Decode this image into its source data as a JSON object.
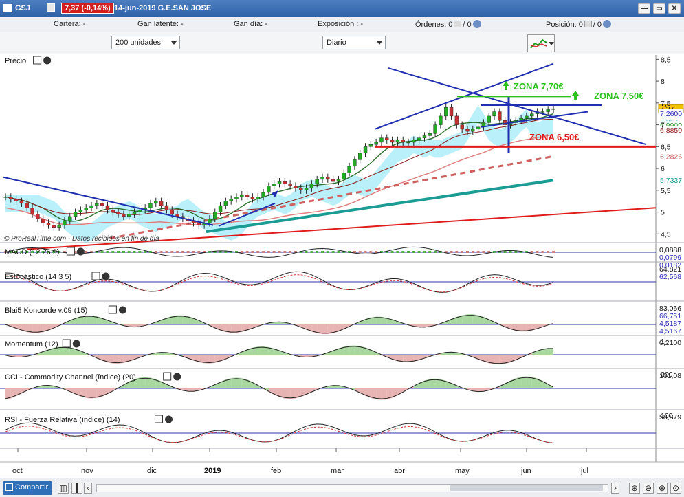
{
  "titlebar": {
    "symbol": "GSJ",
    "price": "7,37 (-0,14%)",
    "date_name": "14-jun-2019 G.E.SAN JOSE",
    "minimize": "—",
    "restore": "▭",
    "close": "✕"
  },
  "infobar": {
    "cartera": "Cartera: -",
    "ganancia_latente": "Gan latente: -",
    "ganancia_dia": "Gan día: -",
    "exposicion": "Exposición : -",
    "ordenes": "Órdenes: 0",
    "ordenes_suffix": "/ 0",
    "posicion": "Posición: 0",
    "posicion_suffix": "/ 0"
  },
  "toolbar": {
    "units": "200 unidades",
    "period": "Diario"
  },
  "bottombar": {
    "share_label": "Compartir"
  },
  "colors": {
    "up": "#22aa22",
    "down": "#c43030",
    "trend": "#1f2fb0",
    "support": "#e01b1b",
    "ichimoku": "#7fe4f5",
    "ema200": "#1a9b94"
  },
  "chart_data": [
    {
      "panel": "Precio",
      "type": "candlestick",
      "x_labels": [
        "oct",
        "nov",
        "dic",
        "2019",
        "feb",
        "mar",
        "abr",
        "may",
        "jun",
        "jul"
      ],
      "y_ticks": [
        "8,5",
        "8",
        "7,5",
        "7",
        "6,5",
        "6",
        "5,5",
        "5",
        "4,5"
      ],
      "ylim": [
        4.3,
        8.6
      ],
      "price_labels": [
        {
          "label": "7,37",
          "value": 7.37,
          "color": "#f2c200"
        },
        {
          "label": "7,2600",
          "value": 7.26,
          "color": "#2a2ab8"
        },
        {
          "label": "7,0675",
          "value": 7.07,
          "color": "#49c7e8"
        },
        {
          "label": "6,9900",
          "value": 6.99,
          "color": "#2b8f2b"
        },
        {
          "label": "6,8850",
          "value": 6.885,
          "color": "#8b1a1a"
        },
        {
          "label": "6,2826",
          "value": 6.28,
          "color": "#d06060"
        },
        {
          "label": "5,7337",
          "value": 5.73,
          "color": "#1a9b94"
        }
      ],
      "annotations": [
        "ZONA 7,70€",
        "ZONA 7,50€",
        "ZONA 6,50€"
      ],
      "watermark": "© ProRealTime.com - Datos recibidos en fin de día",
      "close": [
        5.35,
        5.3,
        5.25,
        5.2,
        5.1,
        4.95,
        4.85,
        4.75,
        4.7,
        4.65,
        4.7,
        4.8,
        4.9,
        5.0,
        5.05,
        5.1,
        5.15,
        5.2,
        5.15,
        5.05,
        5.0,
        4.95,
        4.9,
        4.95,
        5.0,
        5.05,
        5.1,
        5.2,
        5.25,
        5.15,
        5.05,
        4.95,
        4.9,
        4.85,
        4.8,
        4.75,
        4.7,
        4.75,
        4.85,
        5.0,
        5.15,
        5.25,
        5.3,
        5.35,
        5.4,
        5.35,
        5.3,
        5.35,
        5.45,
        5.6,
        5.65,
        5.7,
        5.65,
        5.6,
        5.55,
        5.5,
        5.55,
        5.65,
        5.75,
        5.8,
        5.75,
        5.7,
        5.75,
        5.9,
        6.05,
        6.2,
        6.35,
        6.5,
        6.55,
        6.6,
        6.7,
        6.65,
        6.6,
        6.65,
        6.6,
        6.6,
        6.65,
        6.7,
        6.75,
        6.8,
        7.0,
        7.2,
        7.4,
        7.2,
        7.0,
        6.9,
        6.85,
        6.9,
        6.95,
        7.05,
        7.2,
        7.3,
        7.1,
        7.0,
        7.05,
        7.1,
        7.15,
        7.2,
        7.25,
        7.3,
        7.3,
        7.35,
        7.37
      ]
    },
    {
      "panel": "MACD (12 26 9)",
      "type": "histogram+line",
      "values_labels": [
        "0,0888",
        "0,0799",
        "0,0182"
      ]
    },
    {
      "panel": "Estocástico (14 3 5)",
      "type": "line",
      "values_labels": [
        "64,821",
        "62,568"
      ]
    },
    {
      "panel": "Blai5 Koncorde v.09 (15)",
      "type": "area",
      "values_labels": [
        "83,066",
        "66,751",
        "4,5187",
        "4,5167"
      ]
    },
    {
      "panel": "Momentum (12)",
      "type": "area",
      "y_ticks": [
        "1"
      ],
      "values_labels": [
        "0,2100"
      ]
    },
    {
      "panel": "CCI - Commodity Channel (índice) (20)",
      "type": "area",
      "y_ticks": [
        "200"
      ],
      "values_labels": [
        "101,08"
      ]
    },
    {
      "panel": "RSI - Fuerza Relativa (índice) (14)",
      "type": "line",
      "y_ticks": [
        "100"
      ],
      "values_labels": [
        "58,879"
      ]
    }
  ]
}
